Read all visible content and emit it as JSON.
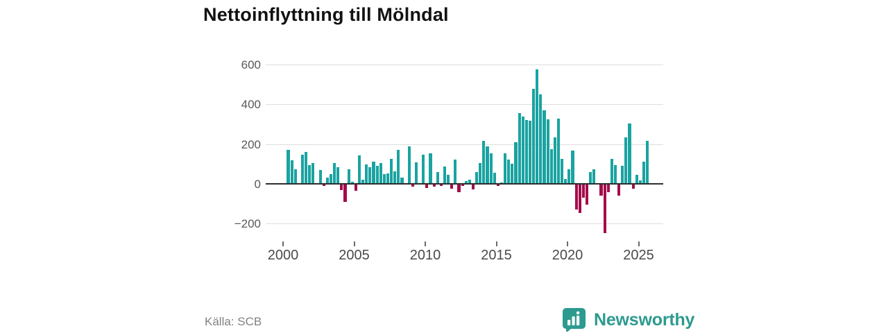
{
  "title": "Nettoinflyttning till Mölndal",
  "footer": {
    "source": "Källa: SCB",
    "brand": "Newsworthy"
  },
  "chart_data": {
    "type": "bar",
    "title": "Nettoinflyttning till Mölndal",
    "source": "Källa: SCB",
    "frequency": "quarterly",
    "start_period": "2000-Q1",
    "end_period": "2025-Q2",
    "values": [
      170,
      118,
      72,
      4,
      145,
      162,
      95,
      105,
      3,
      70,
      -10,
      31,
      49,
      105,
      84,
      -32,
      -92,
      72,
      9,
      -34,
      142,
      21,
      99,
      85,
      112,
      92,
      106,
      50,
      51,
      124,
      64,
      170,
      30,
      4,
      188,
      -14,
      107,
      4,
      145,
      -21,
      153,
      -14,
      58,
      -9,
      87,
      44,
      -25,
      122,
      -41,
      -12,
      15,
      20,
      -29,
      60,
      106,
      215,
      188,
      153,
      55,
      -12,
      8,
      154,
      122,
      101,
      209,
      355,
      340,
      321,
      316,
      477,
      575,
      451,
      370,
      323,
      174,
      233,
      328,
      126,
      26,
      74,
      169,
      -128,
      -148,
      -70,
      -105,
      58,
      73,
      2,
      -58,
      -248,
      -41,
      124,
      93,
      -58,
      91,
      233,
      305,
      -23,
      44,
      17,
      110,
      215
    ],
    "y_tick_labels": [
      "600",
      "400",
      "200",
      "0",
      "−200"
    ],
    "y_tick_values": [
      600,
      400,
      200,
      0,
      -200
    ],
    "x_tick_labels": [
      "2000",
      "2005",
      "2010",
      "2015",
      "2020",
      "2025"
    ],
    "x_tick_years": [
      2000,
      2005,
      2010,
      2015,
      2020,
      2025
    ],
    "ylim": [
      -280,
      620
    ],
    "grid": "horizontal",
    "legend": "none",
    "colors": {
      "positive_bar": "#1aa3a1",
      "negative_bar": "#a30c4c",
      "zero_axis": "#2e2e2e",
      "gridline": "#dedede",
      "brand_teal": "#2d9a8f"
    }
  }
}
